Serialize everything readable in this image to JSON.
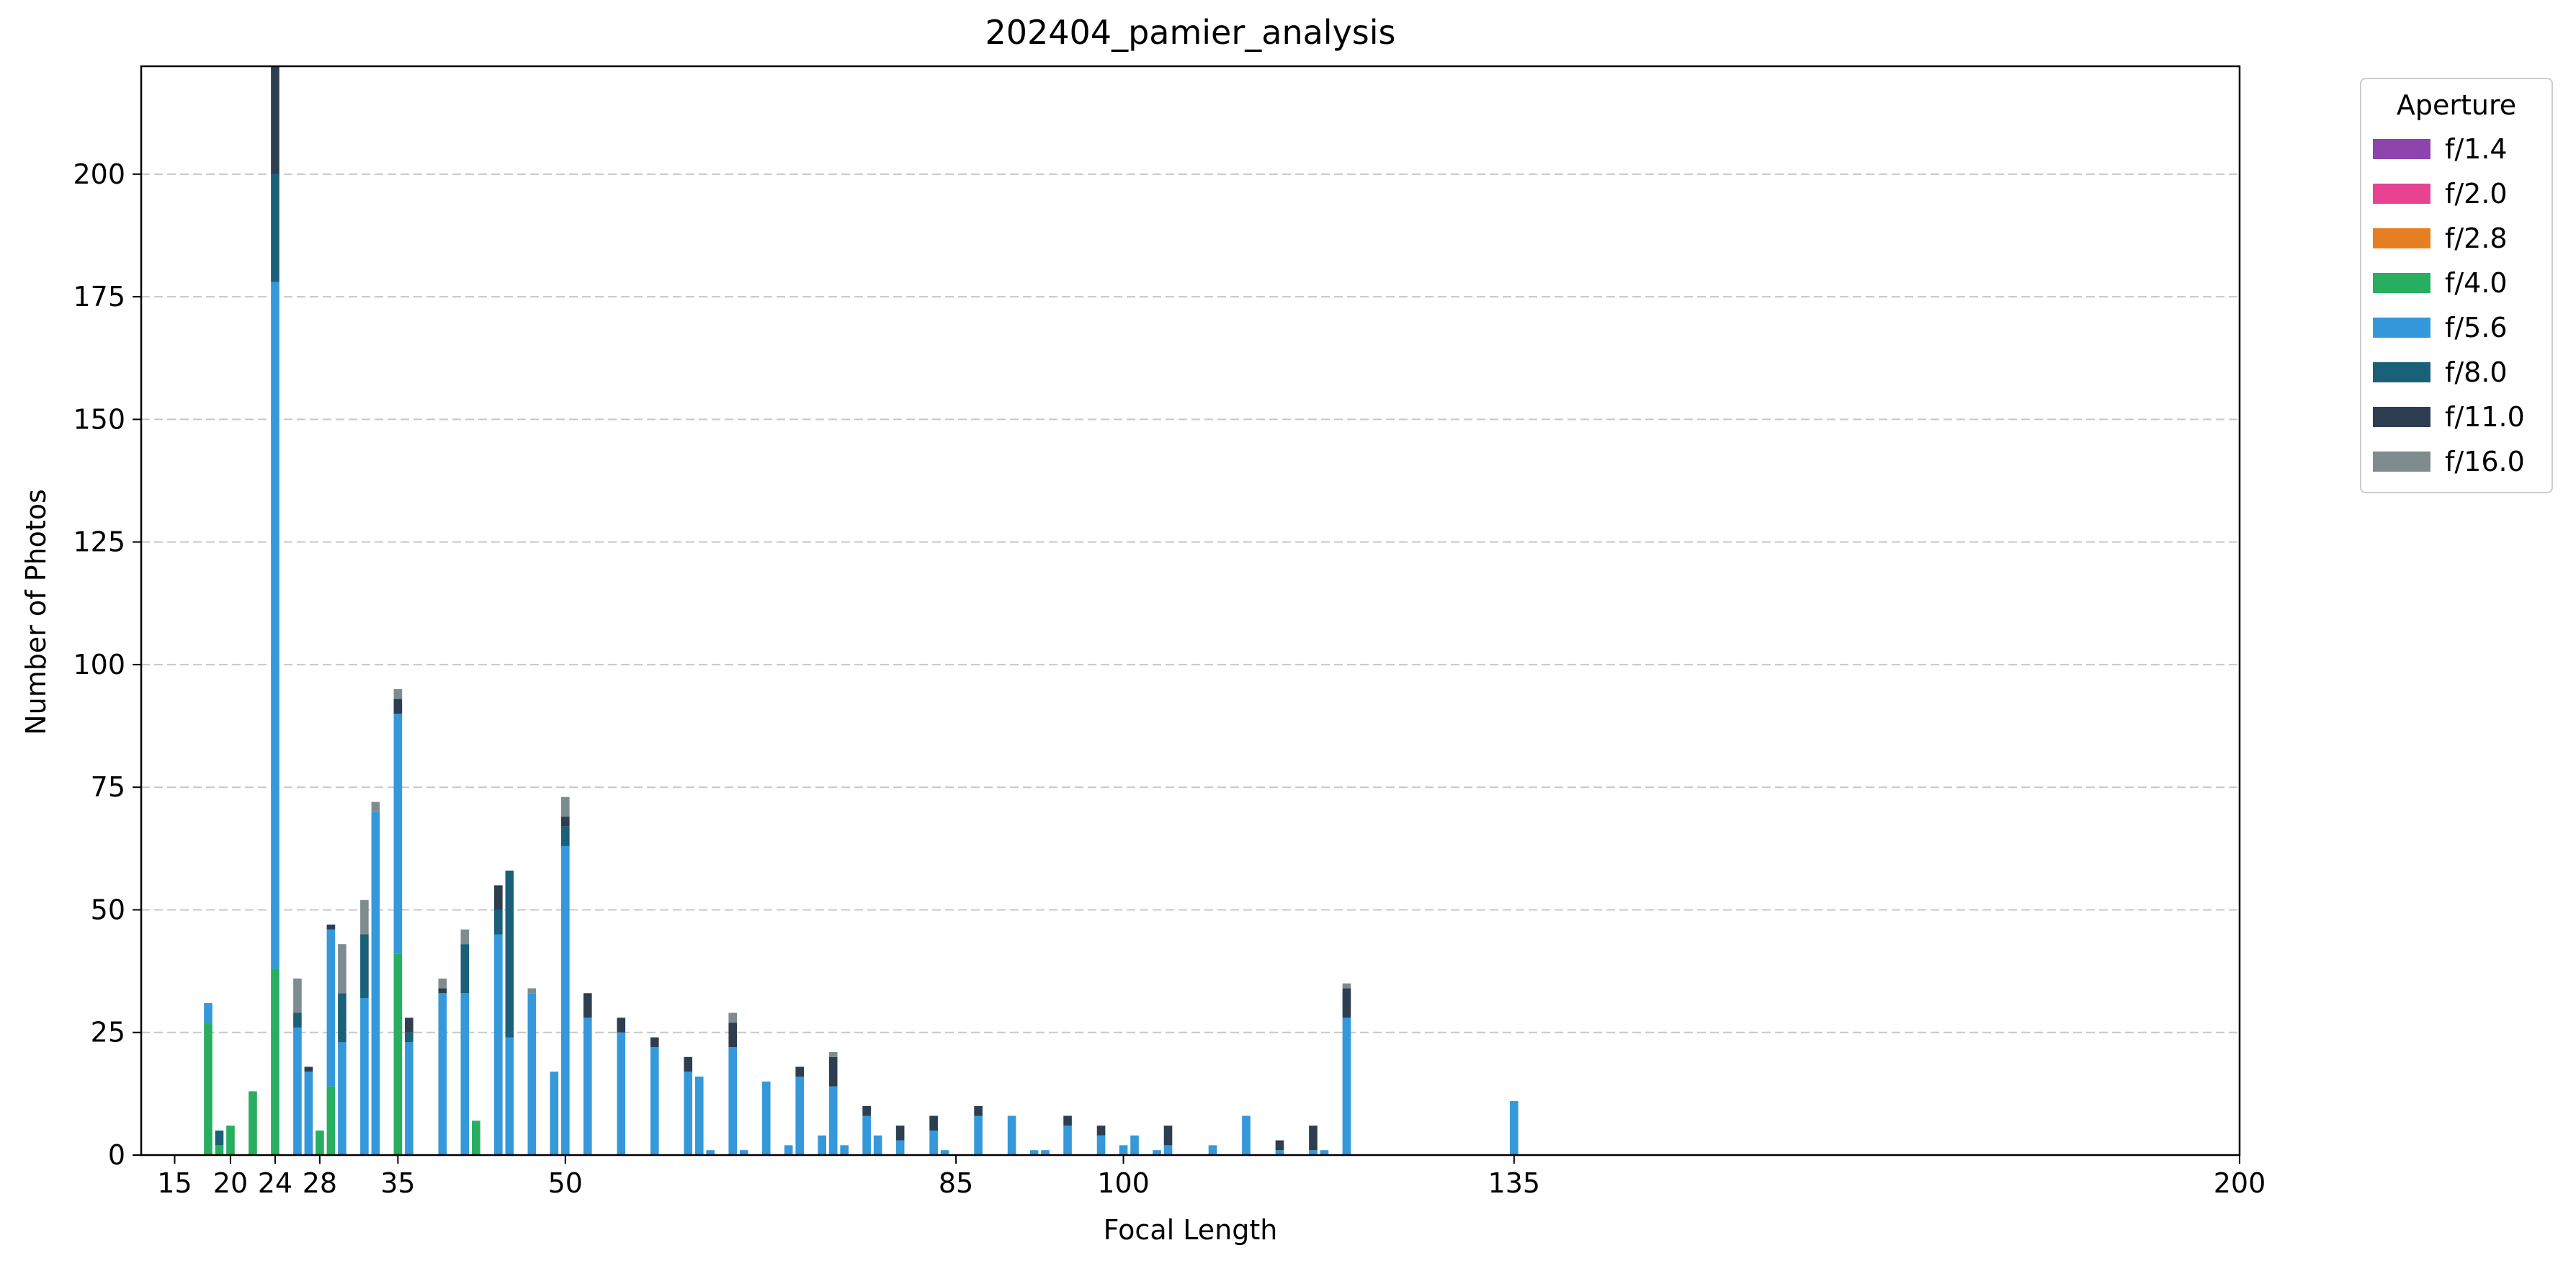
{
  "chart_data": {
    "type": "bar",
    "stacked": true,
    "title": "202404_pamier_analysis",
    "xlabel": "Focal Length",
    "ylabel": "Number of Photos",
    "xlim": [
      12,
      200
    ],
    "ylim": [
      0,
      222
    ],
    "xticks": [
      15,
      20,
      24,
      28,
      35,
      50,
      85,
      100,
      135,
      200
    ],
    "yticks": [
      0,
      25,
      50,
      75,
      100,
      125,
      150,
      175,
      200
    ],
    "grid": "y-dashed",
    "legend": {
      "title": "Aperture",
      "placement": "outside-right"
    },
    "series": [
      {
        "name": "f/1.4",
        "color": "#8e44ad"
      },
      {
        "name": "f/2.0",
        "color": "#e84393"
      },
      {
        "name": "f/2.8",
        "color": "#e67e22"
      },
      {
        "name": "f/4.0",
        "color": "#27ae60"
      },
      {
        "name": "f/5.6",
        "color": "#3498db"
      },
      {
        "name": "f/8.0",
        "color": "#1a6078"
      },
      {
        "name": "f/11.0",
        "color": "#2c3e50"
      },
      {
        "name": "f/16.0",
        "color": "#7f8c8d"
      }
    ],
    "bars": [
      {
        "x": 18,
        "stack": {
          "f/4.0": 27,
          "f/5.6": 4
        }
      },
      {
        "x": 19,
        "stack": {
          "f/4.0": 2,
          "f/8.0": 3
        }
      },
      {
        "x": 20,
        "stack": {
          "f/4.0": 6
        }
      },
      {
        "x": 22,
        "stack": {
          "f/4.0": 13
        }
      },
      {
        "x": 24,
        "stack": {
          "f/4.0": 38,
          "f/5.6": 140,
          "f/8.0": 22,
          "f/11.0": 24
        }
      },
      {
        "x": 26,
        "stack": {
          "f/5.6": 26,
          "f/8.0": 3,
          "f/16.0": 7
        }
      },
      {
        "x": 27,
        "stack": {
          "f/5.6": 17,
          "f/11.0": 1
        }
      },
      {
        "x": 28,
        "stack": {
          "f/4.0": 5
        }
      },
      {
        "x": 29,
        "stack": {
          "f/4.0": 14,
          "f/5.6": 32,
          "f/11.0": 1
        }
      },
      {
        "x": 30,
        "stack": {
          "f/5.6": 23,
          "f/8.0": 10,
          "f/16.0": 10
        }
      },
      {
        "x": 32,
        "stack": {
          "f/5.6": 32,
          "f/8.0": 13,
          "f/16.0": 7
        }
      },
      {
        "x": 33,
        "stack": {
          "f/5.6": 70,
          "f/16.0": 2
        }
      },
      {
        "x": 35,
        "stack": {
          "f/4.0": 41,
          "f/5.6": 49,
          "f/11.0": 3,
          "f/16.0": 2
        }
      },
      {
        "x": 36,
        "stack": {
          "f/5.6": 23,
          "f/8.0": 2,
          "f/11.0": 3
        }
      },
      {
        "x": 39,
        "stack": {
          "f/5.6": 33,
          "f/11.0": 1,
          "f/16.0": 2
        }
      },
      {
        "x": 41,
        "stack": {
          "f/5.6": 33,
          "f/8.0": 10,
          "f/16.0": 3
        }
      },
      {
        "x": 42,
        "stack": {
          "f/4.0": 7
        }
      },
      {
        "x": 44,
        "stack": {
          "f/5.6": 45,
          "f/8.0": 5,
          "f/11.0": 5
        }
      },
      {
        "x": 45,
        "stack": {
          "f/5.6": 24,
          "f/8.0": 34
        }
      },
      {
        "x": 47,
        "stack": {
          "f/5.6": 33,
          "f/16.0": 1
        }
      },
      {
        "x": 49,
        "stack": {
          "f/5.6": 17
        }
      },
      {
        "x": 50,
        "stack": {
          "f/5.6": 63,
          "f/8.0": 4,
          "f/11.0": 2,
          "f/16.0": 4
        }
      },
      {
        "x": 52,
        "stack": {
          "f/5.6": 28,
          "f/11.0": 5
        }
      },
      {
        "x": 55,
        "stack": {
          "f/5.6": 25,
          "f/11.0": 3
        }
      },
      {
        "x": 58,
        "stack": {
          "f/5.6": 22,
          "f/11.0": 2
        }
      },
      {
        "x": 61,
        "stack": {
          "f/5.6": 17,
          "f/11.0": 3
        }
      },
      {
        "x": 62,
        "stack": {
          "f/5.6": 16
        }
      },
      {
        "x": 63,
        "stack": {
          "f/5.6": 1
        }
      },
      {
        "x": 65,
        "stack": {
          "f/5.6": 22,
          "f/11.0": 5,
          "f/16.0": 2
        }
      },
      {
        "x": 66,
        "stack": {
          "f/5.6": 1
        }
      },
      {
        "x": 68,
        "stack": {
          "f/5.6": 15
        }
      },
      {
        "x": 70,
        "stack": {
          "f/5.6": 2
        }
      },
      {
        "x": 71,
        "stack": {
          "f/5.6": 16,
          "f/11.0": 2
        }
      },
      {
        "x": 73,
        "stack": {
          "f/5.6": 4
        }
      },
      {
        "x": 74,
        "stack": {
          "f/5.6": 14,
          "f/11.0": 6,
          "f/16.0": 1
        }
      },
      {
        "x": 75,
        "stack": {
          "f/5.6": 2
        }
      },
      {
        "x": 77,
        "stack": {
          "f/5.6": 8,
          "f/11.0": 2
        }
      },
      {
        "x": 78,
        "stack": {
          "f/5.6": 4
        }
      },
      {
        "x": 80,
        "stack": {
          "f/5.6": 3,
          "f/11.0": 3
        }
      },
      {
        "x": 83,
        "stack": {
          "f/5.6": 5,
          "f/11.0": 3
        }
      },
      {
        "x": 84,
        "stack": {
          "f/5.6": 1
        }
      },
      {
        "x": 87,
        "stack": {
          "f/5.6": 8,
          "f/11.0": 2
        }
      },
      {
        "x": 90,
        "stack": {
          "f/5.6": 8
        }
      },
      {
        "x": 92,
        "stack": {
          "f/5.6": 1
        }
      },
      {
        "x": 93,
        "stack": {
          "f/5.6": 1
        }
      },
      {
        "x": 95,
        "stack": {
          "f/5.6": 6,
          "f/11.0": 2
        }
      },
      {
        "x": 98,
        "stack": {
          "f/5.6": 4,
          "f/11.0": 2
        }
      },
      {
        "x": 100,
        "stack": {
          "f/5.6": 2
        }
      },
      {
        "x": 101,
        "stack": {
          "f/5.6": 4
        }
      },
      {
        "x": 103,
        "stack": {
          "f/5.6": 1
        }
      },
      {
        "x": 104,
        "stack": {
          "f/5.6": 2,
          "f/11.0": 4
        }
      },
      {
        "x": 108,
        "stack": {
          "f/5.6": 2
        }
      },
      {
        "x": 111,
        "stack": {
          "f/5.6": 8
        }
      },
      {
        "x": 114,
        "stack": {
          "f/5.6": 1,
          "f/11.0": 2
        }
      },
      {
        "x": 117,
        "stack": {
          "f/5.6": 1,
          "f/11.0": 5
        }
      },
      {
        "x": 118,
        "stack": {
          "f/5.6": 1
        }
      },
      {
        "x": 120,
        "stack": {
          "f/5.6": 28,
          "f/11.0": 6,
          "f/16.0": 1
        }
      },
      {
        "x": 135,
        "stack": {
          "f/5.6": 11
        }
      }
    ]
  }
}
